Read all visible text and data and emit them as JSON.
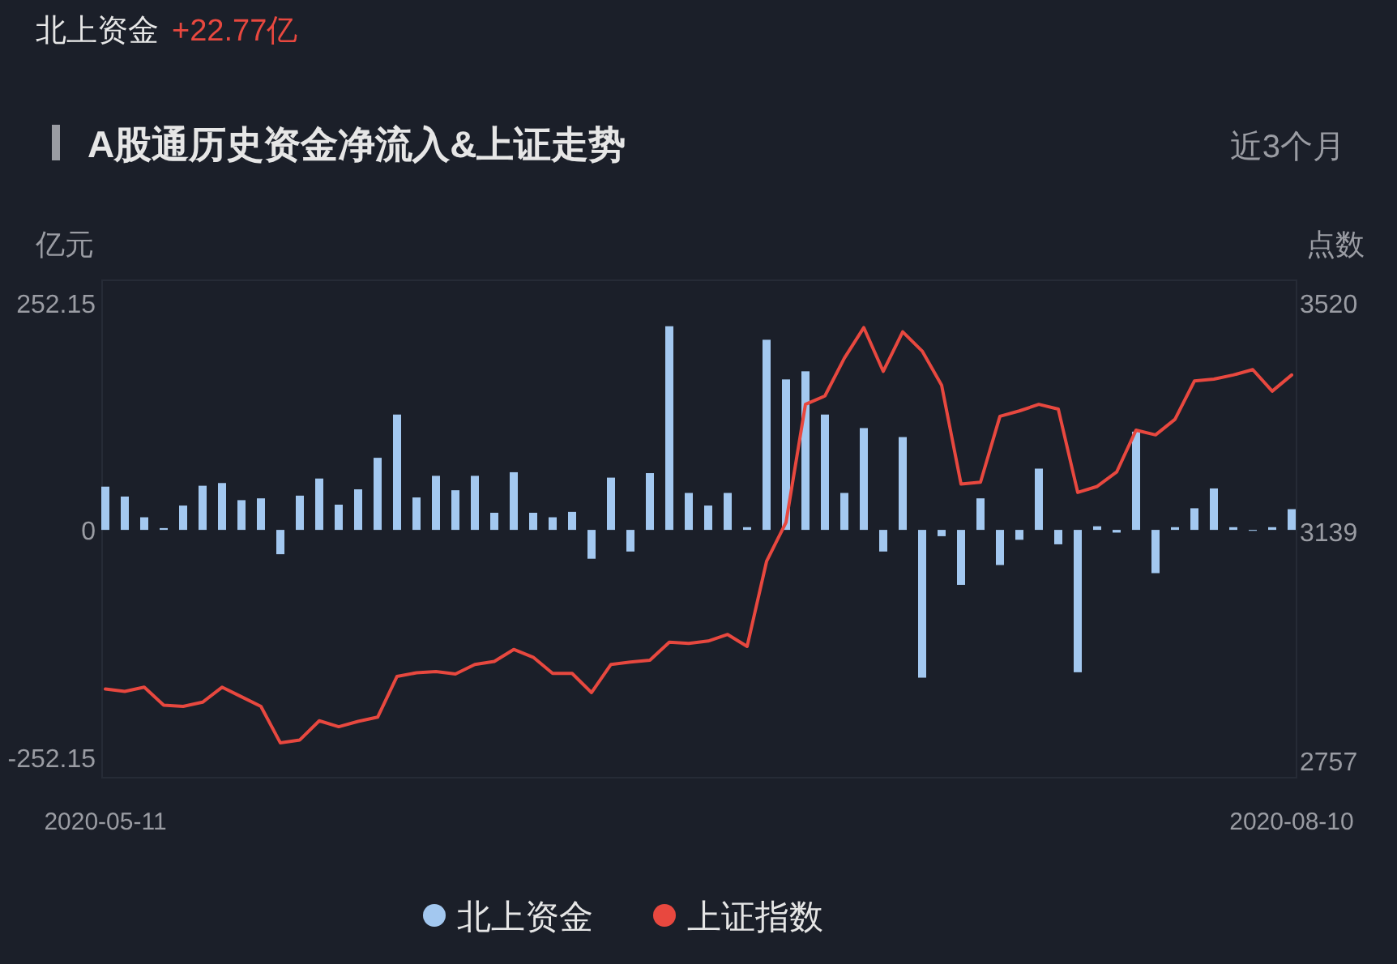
{
  "chart_data": {
    "type": "bar",
    "title": "A股通历史资金净流入&上证走势",
    "annotations": [
      "北上资金",
      "+22.77亿",
      "近3个月"
    ],
    "ylabel": "亿元",
    "y2label": "点数",
    "categories": [
      "2020-05-11",
      null,
      null,
      null,
      null,
      null,
      null,
      null,
      null,
      null,
      null,
      null,
      null,
      null,
      null,
      null,
      null,
      null,
      null,
      null,
      null,
      null,
      null,
      null,
      null,
      null,
      null,
      null,
      null,
      null,
      null,
      null,
      null,
      null,
      null,
      null,
      null,
      null,
      null,
      null,
      null,
      null,
      null,
      null,
      null,
      null,
      null,
      null,
      null,
      null,
      null,
      null,
      null,
      null,
      null,
      null,
      null,
      null,
      null,
      null,
      null,
      "2020-08-10"
    ],
    "series": [
      {
        "name": "北上资金",
        "color": "#a3c8f0",
        "values": [
          48,
          37,
          14,
          2,
          27,
          49,
          52,
          33,
          35,
          -27,
          38,
          57,
          28,
          45,
          80,
          128,
          36,
          60,
          44,
          60,
          19,
          64,
          19,
          14,
          20,
          -32,
          58,
          -24,
          63,
          226,
          41,
          27,
          41,
          3,
          211,
          167,
          176,
          128,
          41,
          113,
          -24,
          103,
          -164,
          -7,
          -61,
          35,
          -39,
          -11,
          68,
          -16,
          -158,
          4,
          -3,
          109,
          -48,
          3,
          24,
          46,
          3,
          -1,
          3,
          23
        ]
      },
      {
        "name": "上证指数",
        "type": "line",
        "axis": "y2",
        "color": "#e8483f",
        "values": [
          2876,
          2872,
          2879,
          2849,
          2847,
          2854,
          2879,
          2863,
          2847,
          2786,
          2791,
          2823,
          2813,
          2822,
          2829,
          2897,
          2903,
          2905,
          2901,
          2917,
          2922,
          2942,
          2929,
          2902,
          2902,
          2870,
          2917,
          2921,
          2924,
          2954,
          2952,
          2956,
          2967,
          2947,
          3089,
          3154,
          3351,
          3365,
          3428,
          3479,
          3406,
          3472,
          3440,
          3383,
          3218,
          3221,
          3331,
          3340,
          3351,
          3343,
          3204,
          3214,
          3238,
          3308,
          3300,
          3326,
          3390,
          3393,
          3400,
          3409,
          3373,
          3400
        ]
      }
    ],
    "ylim": [
      -275,
      277
    ],
    "yticks": [
      252.15,
      0,
      -252.15
    ],
    "y2lim": [
      2728,
      3558
    ],
    "y2ticks": [
      3520,
      3139,
      2757
    ],
    "legend": "bottom"
  }
}
